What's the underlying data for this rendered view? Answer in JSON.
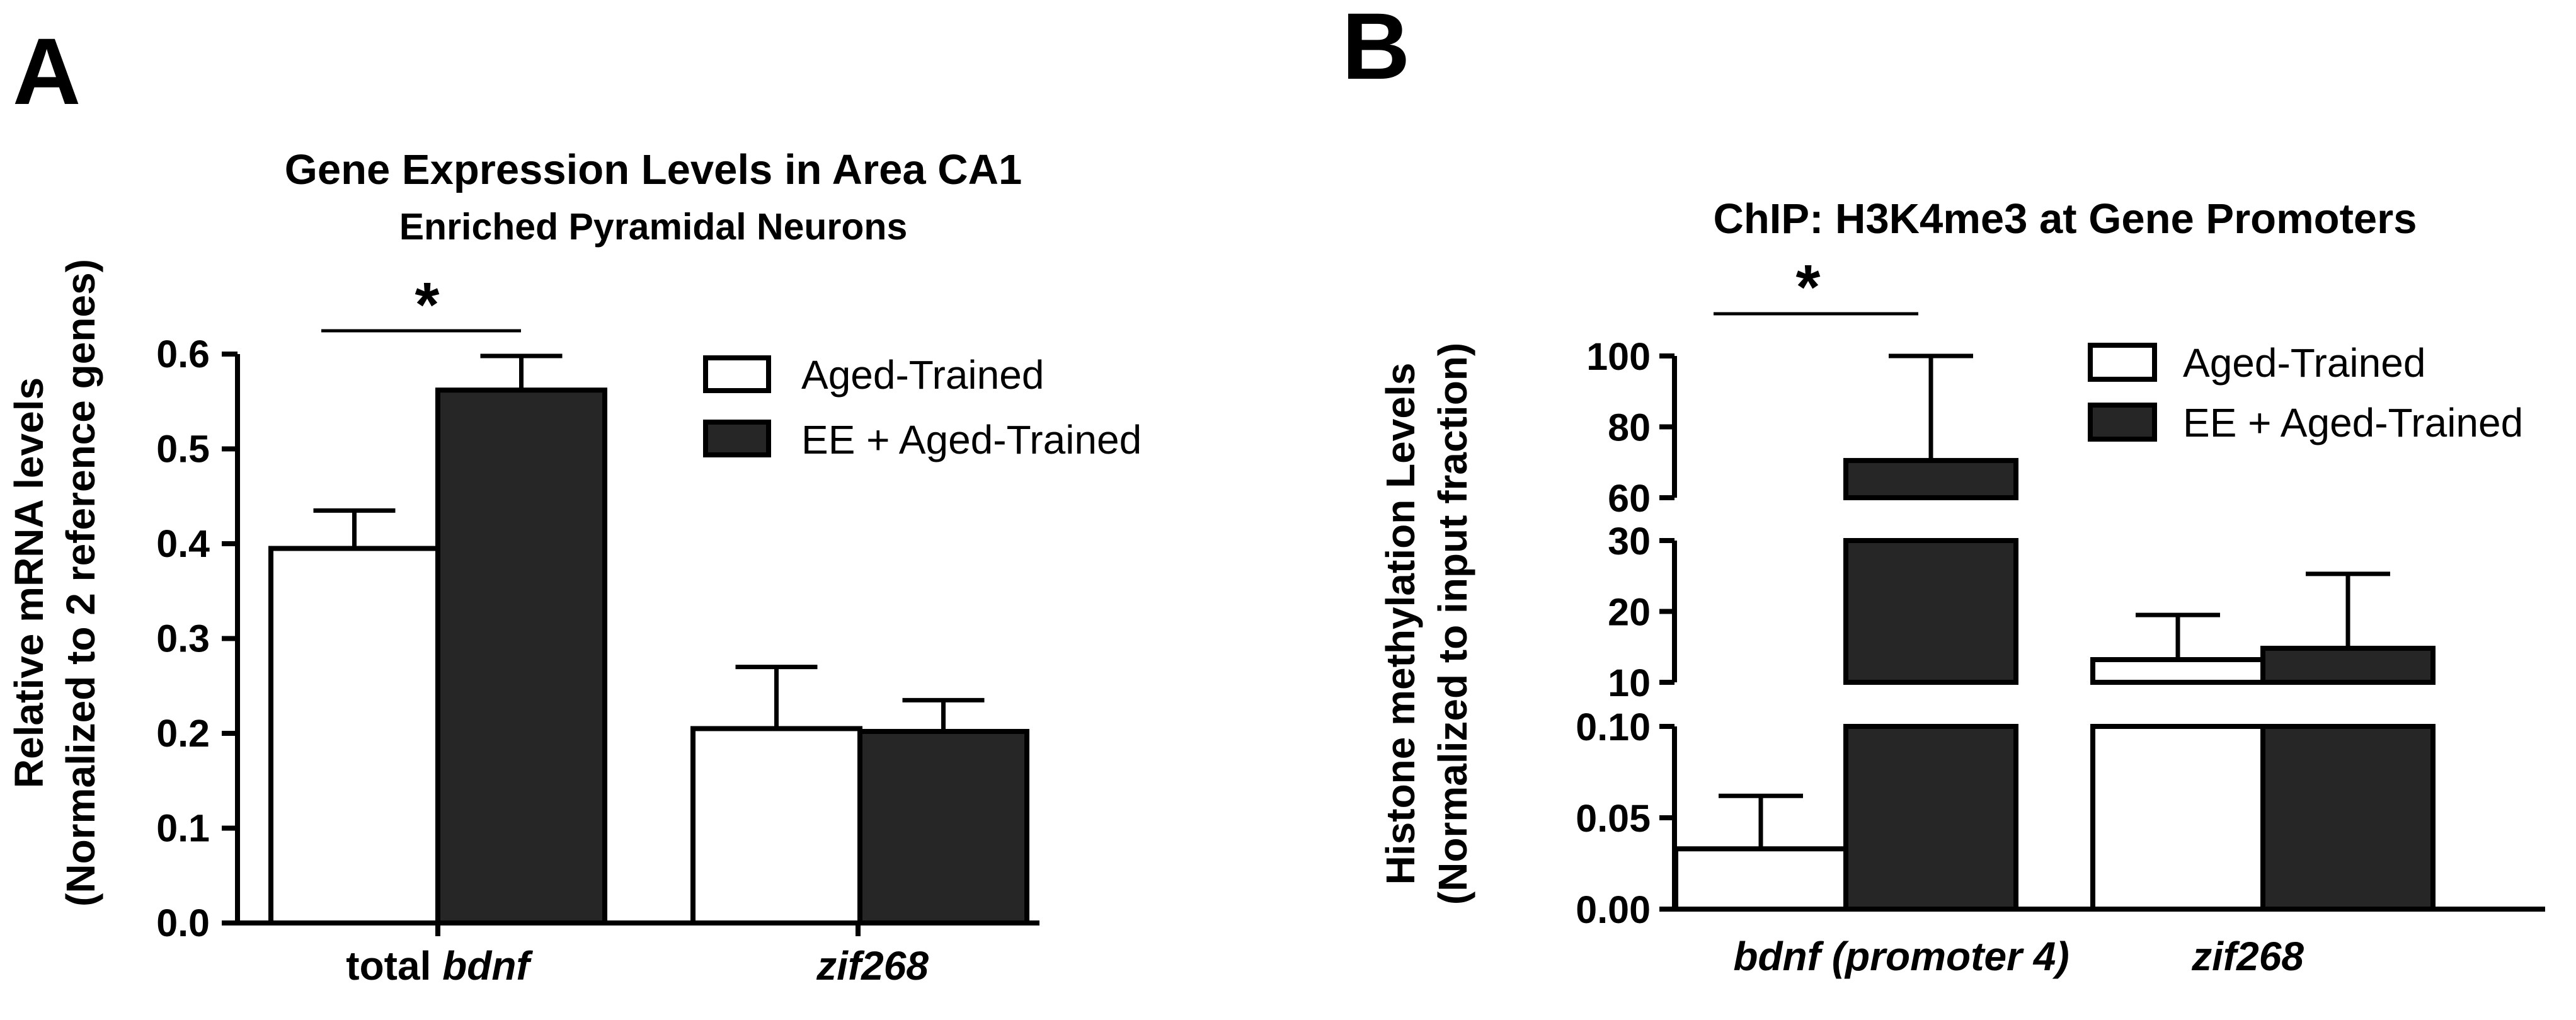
{
  "panel_labels": {
    "a": "A",
    "b": "B"
  },
  "colors": {
    "aged_trained": "#ffffff",
    "ee_aged_trained": "#262626",
    "axis": "#000000"
  },
  "chart_data": [
    {
      "type": "bar",
      "title": "Gene Expression Levels in Area CA1",
      "subtitle": "Enriched Pyramidal Neurons",
      "ylabel_line1": "Relative mRNA levels",
      "ylabel_line2": "(Normalized to 2 reference genes)",
      "categories": [
        {
          "prefix": "total ",
          "gene": "bdnf"
        },
        {
          "prefix": "",
          "gene": "zif268"
        }
      ],
      "series": [
        {
          "name": "Aged-Trained",
          "values": [
            0.395,
            0.205
          ],
          "errors": [
            0.04,
            0.065
          ]
        },
        {
          "name": "EE + Aged-Trained",
          "values": [
            0.562,
            0.202
          ],
          "errors": [
            0.036,
            0.033
          ]
        }
      ],
      "ylim": [
        0,
        0.6
      ],
      "yticks": [
        "0.0",
        "0.1",
        "0.2",
        "0.3",
        "0.4",
        "0.5",
        "0.6"
      ],
      "significance": {
        "category_index": 0,
        "label": "*"
      },
      "legend_position": "top-right"
    },
    {
      "type": "bar",
      "title": "ChIP: H3K4me3 at Gene Promoters",
      "ylabel_line1": "Histone methylation Levels",
      "ylabel_line2": "(Normalized to input fraction)",
      "categories": [
        {
          "prefix": "",
          "gene": "bdnf (promoter 4)"
        },
        {
          "prefix": "",
          "gene": "zif268"
        }
      ],
      "series": [
        {
          "name": "Aged-Trained",
          "values": [
            0.033,
            13.2
          ],
          "errors": [
            0.029,
            6.3
          ]
        },
        {
          "name": "EE + Aged-Trained",
          "values": [
            70.5,
            14.8
          ],
          "errors": [
            29.5,
            10.5
          ]
        }
      ],
      "broken_y_axis": [
        {
          "range": [
            0,
            0.1
          ],
          "ticks": [
            "0.00",
            "0.05",
            "0.10"
          ]
        },
        {
          "range": [
            10,
            30
          ],
          "ticks": [
            "10",
            "20",
            "30"
          ]
        },
        {
          "range": [
            60,
            100
          ],
          "ticks": [
            "60",
            "80",
            "100"
          ]
        }
      ],
      "significance": {
        "category_index": 0,
        "label": "*"
      },
      "legend_position": "top-right"
    }
  ]
}
